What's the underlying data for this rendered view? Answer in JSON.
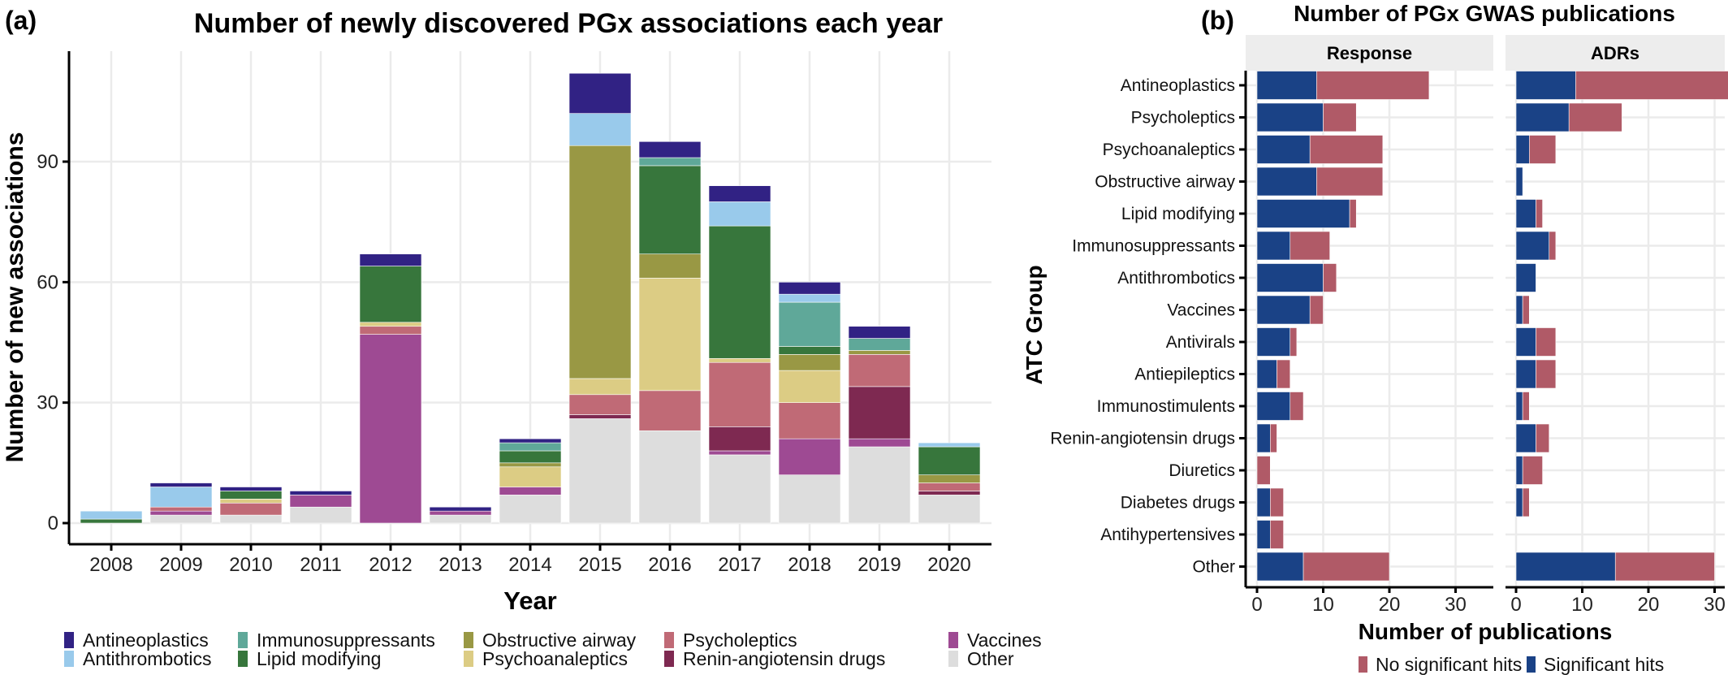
{
  "chart_data": [
    {
      "panel_label": "(a)",
      "type": "bar",
      "stacked": true,
      "title": "Number of newly discovered PGx associations each year",
      "xlabel": "Year",
      "ylabel": "Number of new associations",
      "categories": [
        "2008",
        "2009",
        "2010",
        "2011",
        "2012",
        "2013",
        "2014",
        "2015",
        "2016",
        "2017",
        "2018",
        "2019",
        "2020"
      ],
      "yticks": [
        0,
        30,
        60,
        90
      ],
      "ylim": [
        -5.6,
        117
      ],
      "grid": true,
      "legend_position": "bottom",
      "legend_order": [
        "Antineoplastics",
        "Antithrombotics",
        "Immunosuppressants",
        "Lipid modifying",
        "Obstructive airway",
        "Psychoanaleptics",
        "Psycholeptics",
        "Renin-angiotensin drugs",
        "Vaccines",
        "Other"
      ],
      "series": [
        {
          "name": "Other",
          "color": "#DDDDDD",
          "values": [
            0,
            2,
            2,
            4,
            0,
            2,
            7,
            26,
            23,
            17,
            12,
            19,
            7
          ]
        },
        {
          "name": "Vaccines",
          "color": "#9E4A93",
          "values": [
            0,
            1,
            0,
            3,
            47,
            1,
            2,
            0,
            0,
            1,
            9,
            2,
            0
          ]
        },
        {
          "name": "Renin-angiotensin drugs",
          "color": "#7E2951",
          "values": [
            0,
            0,
            0,
            0,
            0,
            0,
            0,
            1,
            0,
            6,
            0,
            13,
            1
          ]
        },
        {
          "name": "Psycholeptics",
          "color": "#C06A76",
          "values": [
            0,
            1,
            3,
            0,
            2,
            0,
            0,
            5,
            10,
            16,
            9,
            8,
            2
          ]
        },
        {
          "name": "Psychoanaleptics",
          "color": "#DCCC84",
          "values": [
            0,
            0,
            1,
            0,
            1,
            0,
            5,
            4,
            28,
            1,
            8,
            0,
            0
          ]
        },
        {
          "name": "Obstructive airway",
          "color": "#999844",
          "values": [
            0,
            0,
            0,
            0,
            0,
            0,
            1,
            58,
            6,
            0,
            4,
            1,
            2
          ]
        },
        {
          "name": "Lipid modifying",
          "color": "#37763C",
          "values": [
            1,
            0,
            2,
            0,
            14,
            0,
            3,
            0,
            22,
            33,
            2,
            0,
            7
          ]
        },
        {
          "name": "Immunosuppressants",
          "color": "#5FA899",
          "values": [
            0,
            0,
            0,
            0,
            0,
            0,
            2,
            0,
            2,
            0,
            11,
            3,
            0
          ]
        },
        {
          "name": "Antithrombotics",
          "color": "#99CAEB",
          "values": [
            2,
            5,
            0,
            0,
            0,
            0,
            0,
            8,
            0,
            6,
            2,
            0,
            1
          ]
        },
        {
          "name": "Antineoplastics",
          "color": "#312284",
          "values": [
            0,
            1,
            1,
            1,
            3,
            1,
            1,
            10,
            4,
            4,
            3,
            3,
            0
          ]
        }
      ]
    },
    {
      "panel_label": "(b)",
      "type": "bar",
      "orientation": "horizontal",
      "stacked": true,
      "title": "Number of PGx GWAS publications",
      "xlabel": "Number of publications",
      "ylabel": "ATC Group",
      "facets": [
        "Response",
        "ADRs"
      ],
      "categories": [
        "Antineoplastics",
        "Psycholeptics",
        "Psychoanaleptics",
        "Obstructive airway",
        "Lipid modifying",
        "Immunosuppressants",
        "Antithrombotics",
        "Vaccines",
        "Antivirals",
        "Antiepileptics",
        "Immunostimulents",
        "Renin-angiotensin drugs",
        "Diuretics",
        "Diabetes drugs",
        "Antihypertensives",
        "Other"
      ],
      "xticks": [
        0,
        10,
        20,
        30
      ],
      "xlim": [
        -1.7,
        35.7
      ],
      "grid": true,
      "legend_position": "bottom",
      "legend_order": [
        "No significant hits",
        "Significant hits"
      ],
      "series": [
        {
          "name": "Significant hits",
          "color": "#1A4286",
          "Response": [
            9,
            10,
            8,
            9,
            14,
            5,
            10,
            8,
            5,
            3,
            5,
            2,
            0,
            2,
            2,
            7
          ],
          "ADRs": [
            9,
            8,
            2,
            1,
            3,
            5,
            3,
            1,
            3,
            3,
            1,
            3,
            1,
            1,
            0,
            15
          ]
        },
        {
          "name": "No significant hits",
          "color": "#B05A67",
          "Response": [
            17,
            5,
            11,
            10,
            1,
            6,
            2,
            2,
            1,
            2,
            2,
            1,
            2,
            2,
            2,
            13
          ],
          "ADRs": [
            25,
            8,
            4,
            0,
            1,
            1,
            0,
            1,
            3,
            3,
            1,
            2,
            3,
            1,
            0,
            15
          ]
        }
      ]
    }
  ]
}
